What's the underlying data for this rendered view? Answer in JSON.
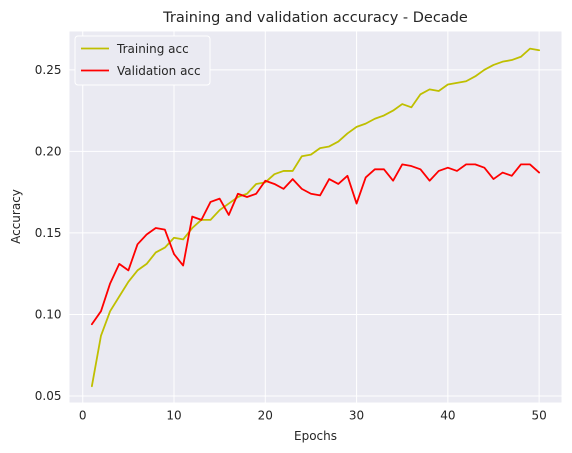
{
  "chart_data": {
    "type": "line",
    "title": "Training and validation accuracy - Decade",
    "xlabel": "Epochs",
    "ylabel": "Accuracy",
    "xlim": [
      -1.45,
      52.45
    ],
    "ylim": [
      0.046,
      0.2735
    ],
    "xticks": [
      0,
      10,
      20,
      30,
      40,
      50
    ],
    "yticks": [
      0.05,
      0.1,
      0.15,
      0.2,
      0.25
    ],
    "ytick_labels": [
      "0.05",
      "0.10",
      "0.15",
      "0.20",
      "0.25"
    ],
    "grid": true,
    "background": "#eaeaf2",
    "legend_position": "upper-left",
    "x": [
      1,
      2,
      3,
      4,
      5,
      6,
      7,
      8,
      9,
      10,
      11,
      12,
      13,
      14,
      15,
      16,
      17,
      18,
      19,
      20,
      21,
      22,
      23,
      24,
      25,
      26,
      27,
      28,
      29,
      30,
      31,
      32,
      33,
      34,
      35,
      36,
      37,
      38,
      39,
      40,
      41,
      42,
      43,
      44,
      45,
      46,
      47,
      48,
      49,
      50
    ],
    "series": [
      {
        "name": "Training acc",
        "color": "#bfbf00",
        "values": [
          0.056,
          0.087,
          0.102,
          0.111,
          0.12,
          0.127,
          0.131,
          0.138,
          0.141,
          0.147,
          0.146,
          0.153,
          0.158,
          0.158,
          0.164,
          0.168,
          0.172,
          0.174,
          0.18,
          0.181,
          0.186,
          0.188,
          0.188,
          0.197,
          0.198,
          0.202,
          0.203,
          0.206,
          0.211,
          0.215,
          0.217,
          0.22,
          0.222,
          0.225,
          0.229,
          0.227,
          0.235,
          0.238,
          0.237,
          0.241,
          0.242,
          0.243,
          0.246,
          0.25,
          0.253,
          0.255,
          0.256,
          0.258,
          0.263,
          0.262
        ]
      },
      {
        "name": "Validation acc",
        "color": "#ff0000",
        "values": [
          0.094,
          0.102,
          0.119,
          0.131,
          0.127,
          0.143,
          0.149,
          0.153,
          0.152,
          0.137,
          0.13,
          0.16,
          0.158,
          0.169,
          0.171,
          0.161,
          0.174,
          0.172,
          0.174,
          0.182,
          0.18,
          0.177,
          0.183,
          0.177,
          0.174,
          0.173,
          0.183,
          0.18,
          0.185,
          0.168,
          0.184,
          0.189,
          0.189,
          0.182,
          0.192,
          0.191,
          0.189,
          0.182,
          0.188,
          0.19,
          0.188,
          0.192,
          0.192,
          0.19,
          0.183,
          0.187,
          0.185,
          0.192,
          0.192,
          0.187
        ]
      }
    ]
  }
}
